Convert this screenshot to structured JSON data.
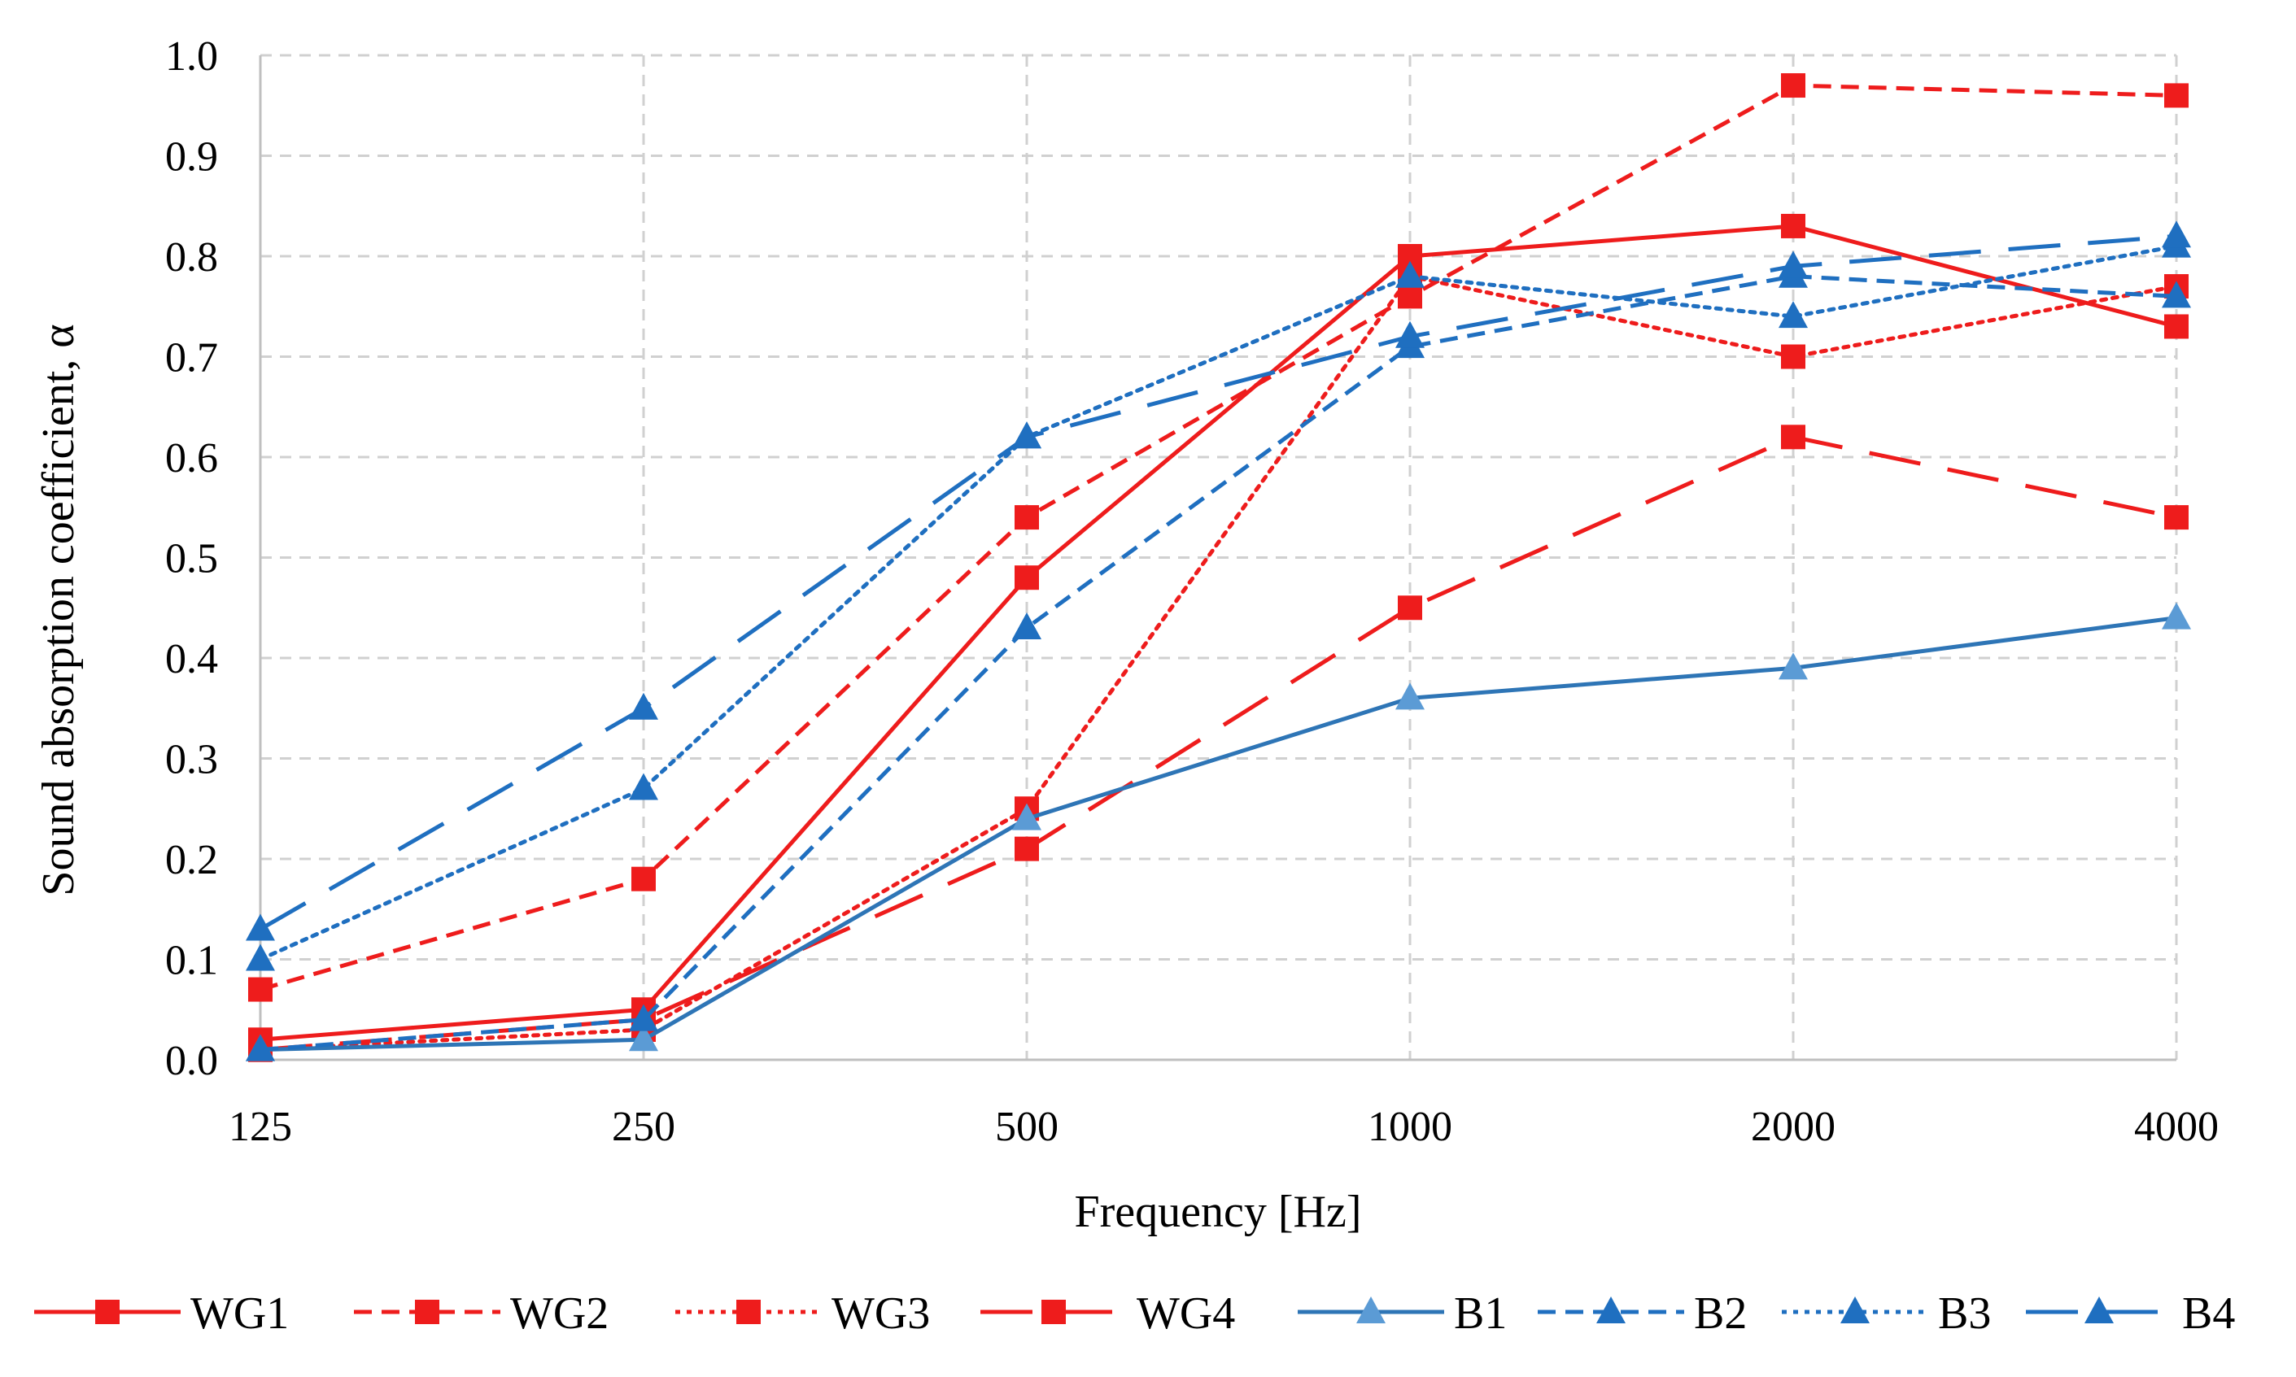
{
  "chart_data": {
    "type": "line",
    "title": "",
    "xlabel": "Frequency [Hz]",
    "ylabel": "Sound absorption coefficient, α",
    "categories": [
      "125",
      "250",
      "500",
      "1000",
      "2000",
      "4000"
    ],
    "ylim": [
      0,
      1.0
    ],
    "yticks": [
      "0.0",
      "0.1",
      "0.2",
      "0.3",
      "0.4",
      "0.5",
      "0.6",
      "0.7",
      "0.8",
      "0.9",
      "1.0"
    ],
    "grid": true,
    "legend_position": "bottom",
    "series": [
      {
        "name": "WG1",
        "color": "#ee1c1c",
        "dash": "solid",
        "marker": "square",
        "values": [
          0.02,
          0.05,
          0.48,
          0.8,
          0.83,
          0.73
        ]
      },
      {
        "name": "WG2",
        "color": "#ee1c1c",
        "dash": "dashed",
        "marker": "square",
        "values": [
          0.07,
          0.18,
          0.54,
          0.76,
          0.97,
          0.96
        ]
      },
      {
        "name": "WG3",
        "color": "#ee1c1c",
        "dash": "dotted",
        "marker": "square",
        "values": [
          0.01,
          0.03,
          0.25,
          0.78,
          0.7,
          0.77
        ]
      },
      {
        "name": "WG4",
        "color": "#ee1c1c",
        "dash": "longdash",
        "marker": "square",
        "values": [
          0.01,
          0.04,
          0.21,
          0.45,
          0.62,
          0.54
        ]
      },
      {
        "name": "B1",
        "color": "#2e75b6",
        "dash": "solid",
        "marker": "triangle-light",
        "values": [
          0.01,
          0.02,
          0.24,
          0.36,
          0.39,
          0.44
        ]
      },
      {
        "name": "B2",
        "color": "#1f6fc0",
        "dash": "dashed",
        "marker": "triangle",
        "values": [
          0.01,
          0.04,
          0.43,
          0.71,
          0.78,
          0.76
        ]
      },
      {
        "name": "B3",
        "color": "#1f6fc0",
        "dash": "dotted",
        "marker": "triangle",
        "values": [
          0.1,
          0.27,
          0.62,
          0.78,
          0.74,
          0.81
        ]
      },
      {
        "name": "B4",
        "color": "#1f6fc0",
        "dash": "longdash",
        "marker": "triangle",
        "values": [
          0.13,
          0.35,
          0.62,
          0.72,
          0.79,
          0.82
        ]
      }
    ]
  }
}
